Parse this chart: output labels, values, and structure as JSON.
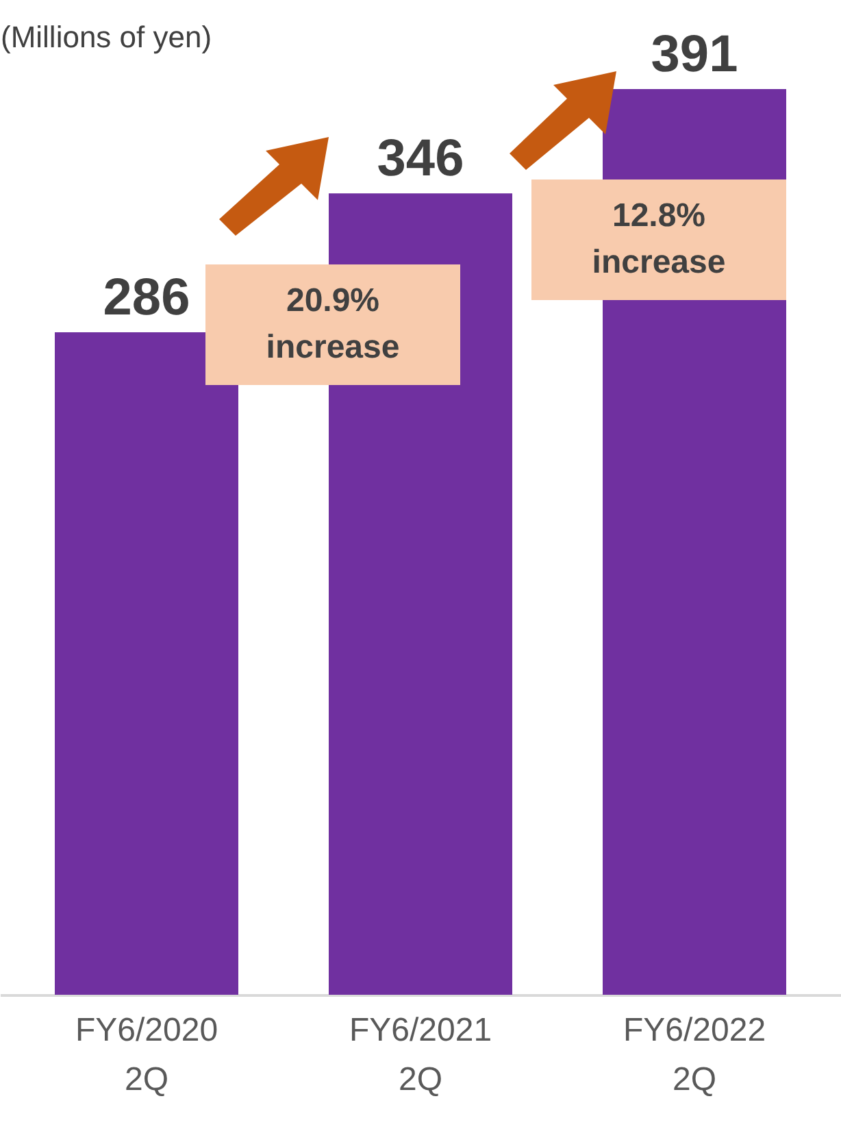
{
  "chart_data": {
    "type": "bar",
    "ylabel": "(Millions of yen)",
    "categories": [
      "FY6/2020 2Q",
      "FY6/2021 2Q",
      "FY6/2022 2Q"
    ],
    "values": [
      286,
      346,
      391
    ],
    "color": "#7030a0",
    "data_labels": true,
    "grid": false,
    "tick_labels": "x",
    "annotations": [
      "20.9% increase",
      "12.8% increase"
    ]
  }
}
